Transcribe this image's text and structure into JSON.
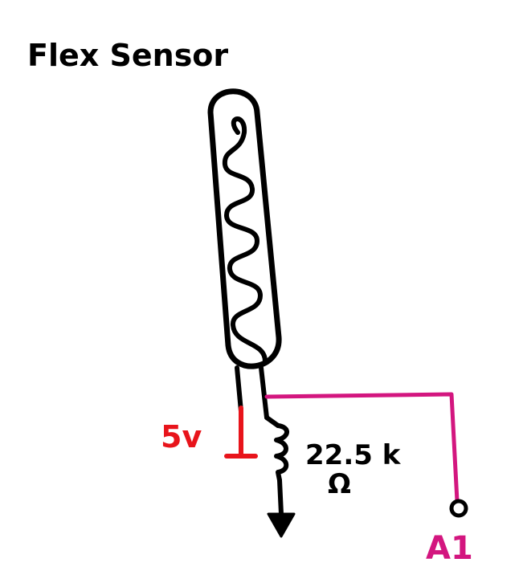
{
  "title": "Flex Sensor",
  "supply_label": "5v",
  "resistor_value": "22.5 k",
  "resistor_unit": "Ω",
  "pin_label": "A1",
  "colors": {
    "ink": "#000000",
    "supply": "#e8141b",
    "signal": "#d3167f"
  }
}
